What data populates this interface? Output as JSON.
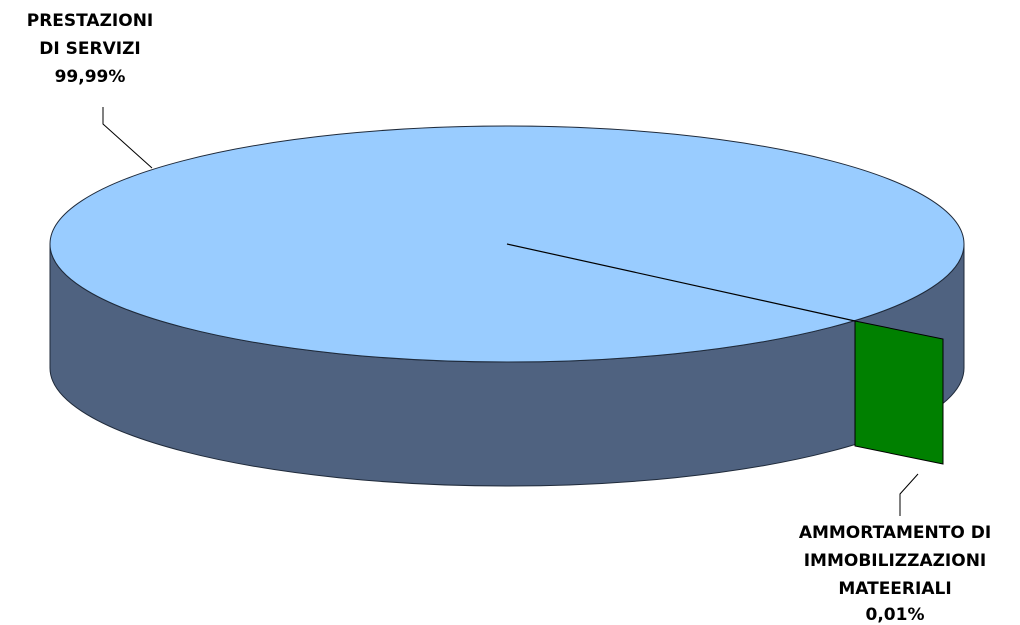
{
  "chart_data": {
    "type": "pie",
    "style": "3d",
    "legend": "none",
    "slices": [
      {
        "label_lines": [
          "PRESTAZIONI",
          "DI SERVIZI"
        ],
        "value_label": "99,99%",
        "value": 99.99,
        "color": "#99ccff",
        "side_color": "#4f6280"
      },
      {
        "label_lines": [
          "AMMORTAMENTO DI",
          "IMMOBILIZZAZIONI",
          "MATEERIALI"
        ],
        "value_label": "0,01%",
        "value": 0.01,
        "color": "#008000",
        "side_color": "#008000"
      }
    ]
  }
}
